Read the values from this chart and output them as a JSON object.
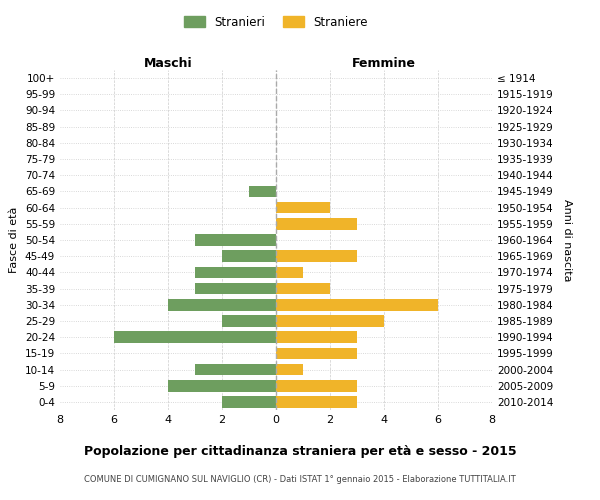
{
  "age_groups": [
    "100+",
    "95-99",
    "90-94",
    "85-89",
    "80-84",
    "75-79",
    "70-74",
    "65-69",
    "60-64",
    "55-59",
    "50-54",
    "45-49",
    "40-44",
    "35-39",
    "30-34",
    "25-29",
    "20-24",
    "15-19",
    "10-14",
    "5-9",
    "0-4"
  ],
  "birth_years": [
    "≤ 1914",
    "1915-1919",
    "1920-1924",
    "1925-1929",
    "1930-1934",
    "1935-1939",
    "1940-1944",
    "1945-1949",
    "1950-1954",
    "1955-1959",
    "1960-1964",
    "1965-1969",
    "1970-1974",
    "1975-1979",
    "1980-1984",
    "1985-1989",
    "1990-1994",
    "1995-1999",
    "2000-2004",
    "2005-2009",
    "2010-2014"
  ],
  "males": [
    0,
    0,
    0,
    0,
    0,
    0,
    0,
    1,
    0,
    0,
    3,
    2,
    3,
    3,
    4,
    2,
    6,
    0,
    3,
    4,
    2
  ],
  "females": [
    0,
    0,
    0,
    0,
    0,
    0,
    0,
    0,
    2,
    3,
    0,
    3,
    1,
    2,
    6,
    4,
    3,
    3,
    1,
    3,
    3
  ],
  "male_color": "#6e9e5f",
  "female_color": "#f0b429",
  "title": "Popolazione per cittadinanza straniera per età e sesso - 2015",
  "subtitle": "COMUNE DI CUMIGNANO SUL NAVIGLIO (CR) - Dati ISTAT 1° gennaio 2015 - Elaborazione TUTTITALIA.IT",
  "ylabel_left": "Fasce di età",
  "ylabel_right": "Anni di nascita",
  "xlabel_left": "Maschi",
  "xlabel_right": "Femmine",
  "legend_male": "Stranieri",
  "legend_female": "Straniere",
  "xlim": 8,
  "background_color": "#ffffff",
  "grid_color": "#cccccc"
}
